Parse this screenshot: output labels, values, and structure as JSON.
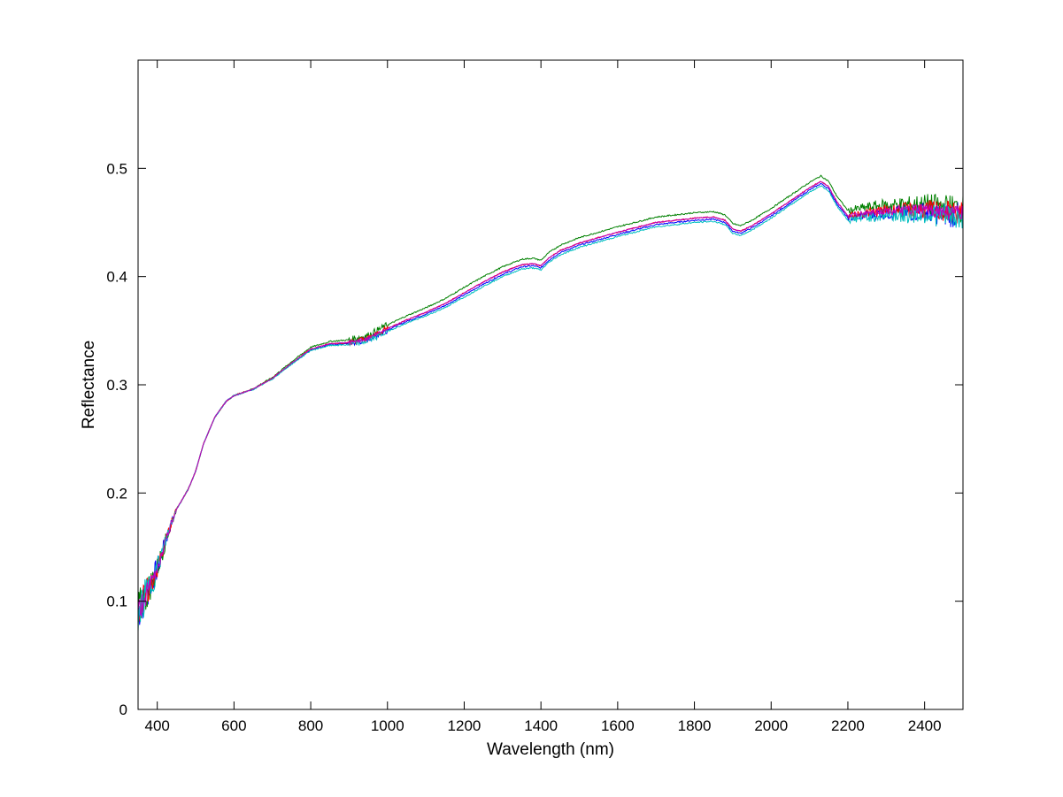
{
  "chart_data": {
    "type": "line",
    "xlabel": "Wavelength (nm)",
    "ylabel": "Reflectance",
    "xlim": [
      350,
      2500
    ],
    "ylim": [
      0,
      0.6
    ],
    "xticks": [
      400,
      600,
      800,
      1000,
      1200,
      1400,
      1600,
      1800,
      2000,
      2200,
      2400
    ],
    "yticks": [
      0,
      0.1,
      0.2,
      0.3,
      0.4,
      0.5
    ],
    "xtick_labels": [
      "400",
      "600",
      "800",
      "1000",
      "1200",
      "1400",
      "1600",
      "1800",
      "2000",
      "2200",
      "2400"
    ],
    "ytick_labels": [
      "0",
      "0.1",
      "0.2",
      "0.3",
      "0.4",
      "0.5"
    ],
    "grid": false,
    "base_curve": {
      "x": [
        350,
        370,
        400,
        430,
        450,
        480,
        500,
        520,
        550,
        580,
        600,
        650,
        700,
        750,
        800,
        850,
        900,
        950,
        1000,
        1050,
        1100,
        1150,
        1200,
        1250,
        1300,
        1350,
        1380,
        1400,
        1420,
        1450,
        1500,
        1600,
        1700,
        1800,
        1850,
        1880,
        1900,
        1920,
        1950,
        2000,
        2050,
        2100,
        2130,
        2150,
        2170,
        2200,
        2250,
        2300,
        2350,
        2400,
        2450,
        2500
      ],
      "y": [
        0.09,
        0.105,
        0.13,
        0.165,
        0.185,
        0.203,
        0.22,
        0.245,
        0.27,
        0.285,
        0.29,
        0.296,
        0.306,
        0.32,
        0.333,
        0.338,
        0.339,
        0.343,
        0.352,
        0.36,
        0.367,
        0.375,
        0.385,
        0.395,
        0.404,
        0.411,
        0.412,
        0.41,
        0.417,
        0.424,
        0.431,
        0.441,
        0.45,
        0.454,
        0.455,
        0.452,
        0.444,
        0.442,
        0.447,
        0.458,
        0.47,
        0.482,
        0.488,
        0.483,
        0.47,
        0.456,
        0.459,
        0.461,
        0.461,
        0.462,
        0.46,
        0.458
      ]
    },
    "series": [
      {
        "color": "#0000ff",
        "offset": -0.002,
        "noise_scale": 1.0
      },
      {
        "color": "#008000",
        "offset": 0.005,
        "noise_scale": 1.0
      },
      {
        "color": "#ff0000",
        "offset": 0.0,
        "noise_scale": 0.9
      },
      {
        "color": "#00bfbf",
        "offset": -0.004,
        "noise_scale": 1.0
      },
      {
        "color": "#bf00bf",
        "offset": 0.0,
        "noise_scale": 0.6
      }
    ]
  }
}
